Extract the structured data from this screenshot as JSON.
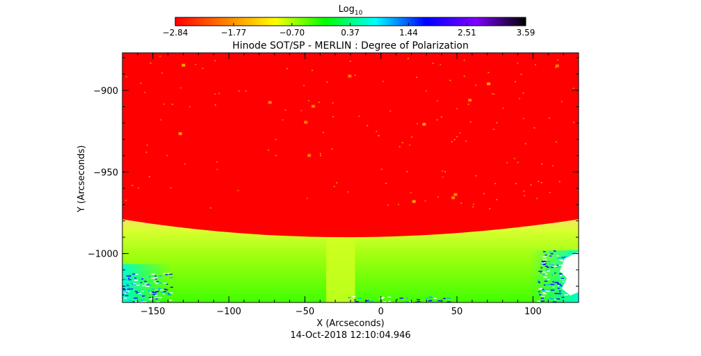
{
  "chart_data": {
    "type": "heatmap",
    "title": "Hinode SOT/SP - MERLIN : Degree of Polarization",
    "footer": "14-Oct-2018 12:10:04.946",
    "xlabel": "X (Arcseconds)",
    "ylabel": "Y (Arcseconds)",
    "xlim": [
      -170,
      130
    ],
    "ylim": [
      -1030,
      -877
    ],
    "x_ticks": [
      -150,
      -100,
      -50,
      0,
      50,
      100
    ],
    "x_tick_labels": [
      "−150",
      "−100",
      "−50",
      "0",
      "50",
      "100"
    ],
    "y_ticks": [
      -900,
      -950,
      -1000
    ],
    "y_tick_labels": [
      "−900",
      "−950",
      "−1000"
    ],
    "colorbar": {
      "label_base": "Log",
      "label_subscript": "10",
      "range": [
        -2.84,
        3.59
      ],
      "ticks": [
        -2.84,
        -1.77,
        -0.7,
        0.37,
        1.44,
        2.51,
        3.59
      ],
      "tick_labels": [
        "−2.84",
        "−1.77",
        "−0.70",
        "0.37",
        "1.44",
        "2.51",
        "3.59"
      ],
      "colormap": [
        "#ff0000",
        "#ff8000",
        "#ffff00",
        "#00ff00",
        "#00ffff",
        "#0000ff",
        "#7f00ff",
        "#000000"
      ]
    },
    "regions": {
      "on_disk_level": -2.84,
      "limb_band_level": -0.4,
      "off_limb_level": 0.5,
      "limb_y_center": -990,
      "limb_y_edges": -979,
      "limb_vertex_x": -25,
      "bright_strip_x": [
        -36,
        -17
      ],
      "bright_strip_level": -1.2
    }
  }
}
